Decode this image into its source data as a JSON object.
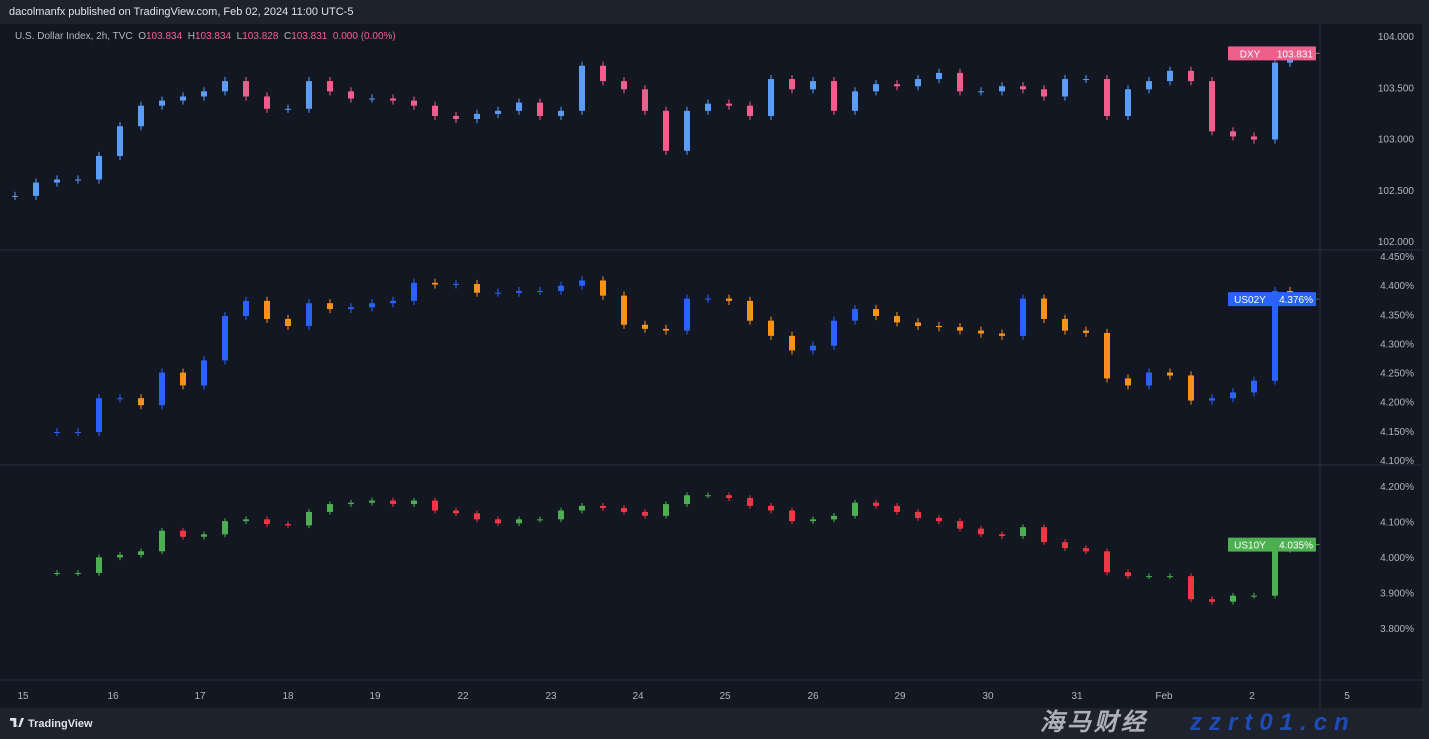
{
  "header": {
    "published": "dacolmanfx published on TradingView.com, Feb 02, 2024 11:00 UTC-5"
  },
  "legend": {
    "symbol": "U.S. Dollar Index, 2h, TVC",
    "o_label": "O",
    "o": "103.834",
    "h_label": "H",
    "h": "103.834",
    "l_label": "L",
    "l": "103.828",
    "c_label": "C",
    "c": "103.831",
    "change": "0.000 (0.00%)"
  },
  "footer": {
    "logo": "TradingView"
  },
  "watermark": {
    "cn": "海马财经",
    "url": "zzrt01.cn"
  },
  "chart_data": [
    {
      "type": "candlestick",
      "symbol": "DXY",
      "last": "103.831",
      "ylim": [
        102.0,
        104.0
      ],
      "yticks": [
        "104.000",
        "103.500",
        "103.000",
        "102.500",
        "102.000"
      ],
      "tick_values": [
        104,
        103.5,
        103,
        102.5,
        102
      ],
      "colors": {
        "up": "#5b9cf6",
        "down": "#ef5f8d",
        "label": "#ef5f8d"
      },
      "closes": [
        102.44,
        102.57,
        102.6,
        102.6,
        102.83,
        103.12,
        103.32,
        103.37,
        103.41,
        103.46,
        103.56,
        103.41,
        103.29,
        103.29,
        103.56,
        103.46,
        103.39,
        103.39,
        103.37,
        103.32,
        103.22,
        103.19,
        103.24,
        103.27,
        103.35,
        103.22,
        103.27,
        103.71,
        103.56,
        103.48,
        103.27,
        102.88,
        103.27,
        103.34,
        103.32,
        103.22,
        103.58,
        103.48,
        103.56,
        103.27,
        103.46,
        103.53,
        103.51,
        103.58,
        103.64,
        103.46,
        103.46,
        103.51,
        103.48,
        103.41,
        103.58,
        103.58,
        103.22,
        103.48,
        103.56,
        103.66,
        103.56,
        103.07,
        103.02,
        102.99,
        103.74,
        103.831
      ]
    },
    {
      "type": "candlestick",
      "symbol": "US02Y",
      "last": "4.376%",
      "ylim": [
        4.1,
        4.45
      ],
      "yticks": [
        "4.450%",
        "4.400%",
        "4.350%",
        "4.300%",
        "4.250%",
        "4.200%",
        "4.150%",
        "4.100%"
      ],
      "tick_values": [
        4.45,
        4.4,
        4.35,
        4.3,
        4.25,
        4.2,
        4.15,
        4.1
      ],
      "colors": {
        "up": "#2962ff",
        "down": "#f7931a",
        "label": "#2962ff"
      },
      "closes": [
        null,
        null,
        4.148,
        4.148,
        4.206,
        4.206,
        4.194,
        4.25,
        4.228,
        4.271,
        4.347,
        4.373,
        4.342,
        4.33,
        4.369,
        4.359,
        4.362,
        4.369,
        4.373,
        4.404,
        4.401,
        4.402,
        4.387,
        4.387,
        4.39,
        4.39,
        4.399,
        4.408,
        4.382,
        4.332,
        4.325,
        4.322,
        4.377,
        4.377,
        4.373,
        4.339,
        4.313,
        4.288,
        4.296,
        4.339,
        4.359,
        4.347,
        4.336,
        4.33,
        4.328,
        4.322,
        4.317,
        4.313,
        4.377,
        4.342,
        4.322,
        4.318,
        4.24,
        4.228,
        4.25,
        4.245,
        4.202,
        4.206,
        4.216,
        4.236,
        4.39,
        4.376
      ]
    },
    {
      "type": "candlestick",
      "symbol": "US10Y",
      "last": "4.035%",
      "ylim": [
        3.78,
        4.22
      ],
      "yticks": [
        "4.200%",
        "4.100%",
        "4.000%",
        "3.900%",
        "3.800%"
      ],
      "tick_values": [
        4.2,
        4.1,
        4.0,
        3.9,
        3.8
      ],
      "colors": {
        "up": "#4caf50",
        "down": "#f23645",
        "label": "#4caf50"
      },
      "closes": [
        null,
        null,
        3.955,
        3.955,
        3.999,
        4.006,
        4.016,
        4.074,
        4.057,
        4.064,
        4.101,
        4.106,
        4.093,
        4.089,
        4.127,
        4.149,
        4.153,
        4.159,
        4.149,
        4.159,
        4.131,
        4.123,
        4.106,
        4.095,
        4.106,
        4.106,
        4.131,
        4.144,
        4.138,
        4.127,
        4.116,
        4.149,
        4.174,
        4.174,
        4.166,
        4.144,
        4.131,
        4.101,
        4.106,
        4.116,
        4.153,
        4.144,
        4.127,
        4.11,
        4.101,
        4.08,
        4.064,
        4.059,
        4.084,
        4.042,
        4.025,
        4.016,
        3.957,
        3.946,
        3.946,
        3.946,
        3.881,
        3.874,
        3.891,
        3.891,
        4.02,
        4.035
      ]
    }
  ],
  "x_ticks": [
    "15",
    "16",
    "17",
    "18",
    "19",
    "22",
    "23",
    "24",
    "25",
    "26",
    "29",
    "30",
    "31",
    "Feb",
    "2",
    "5"
  ]
}
